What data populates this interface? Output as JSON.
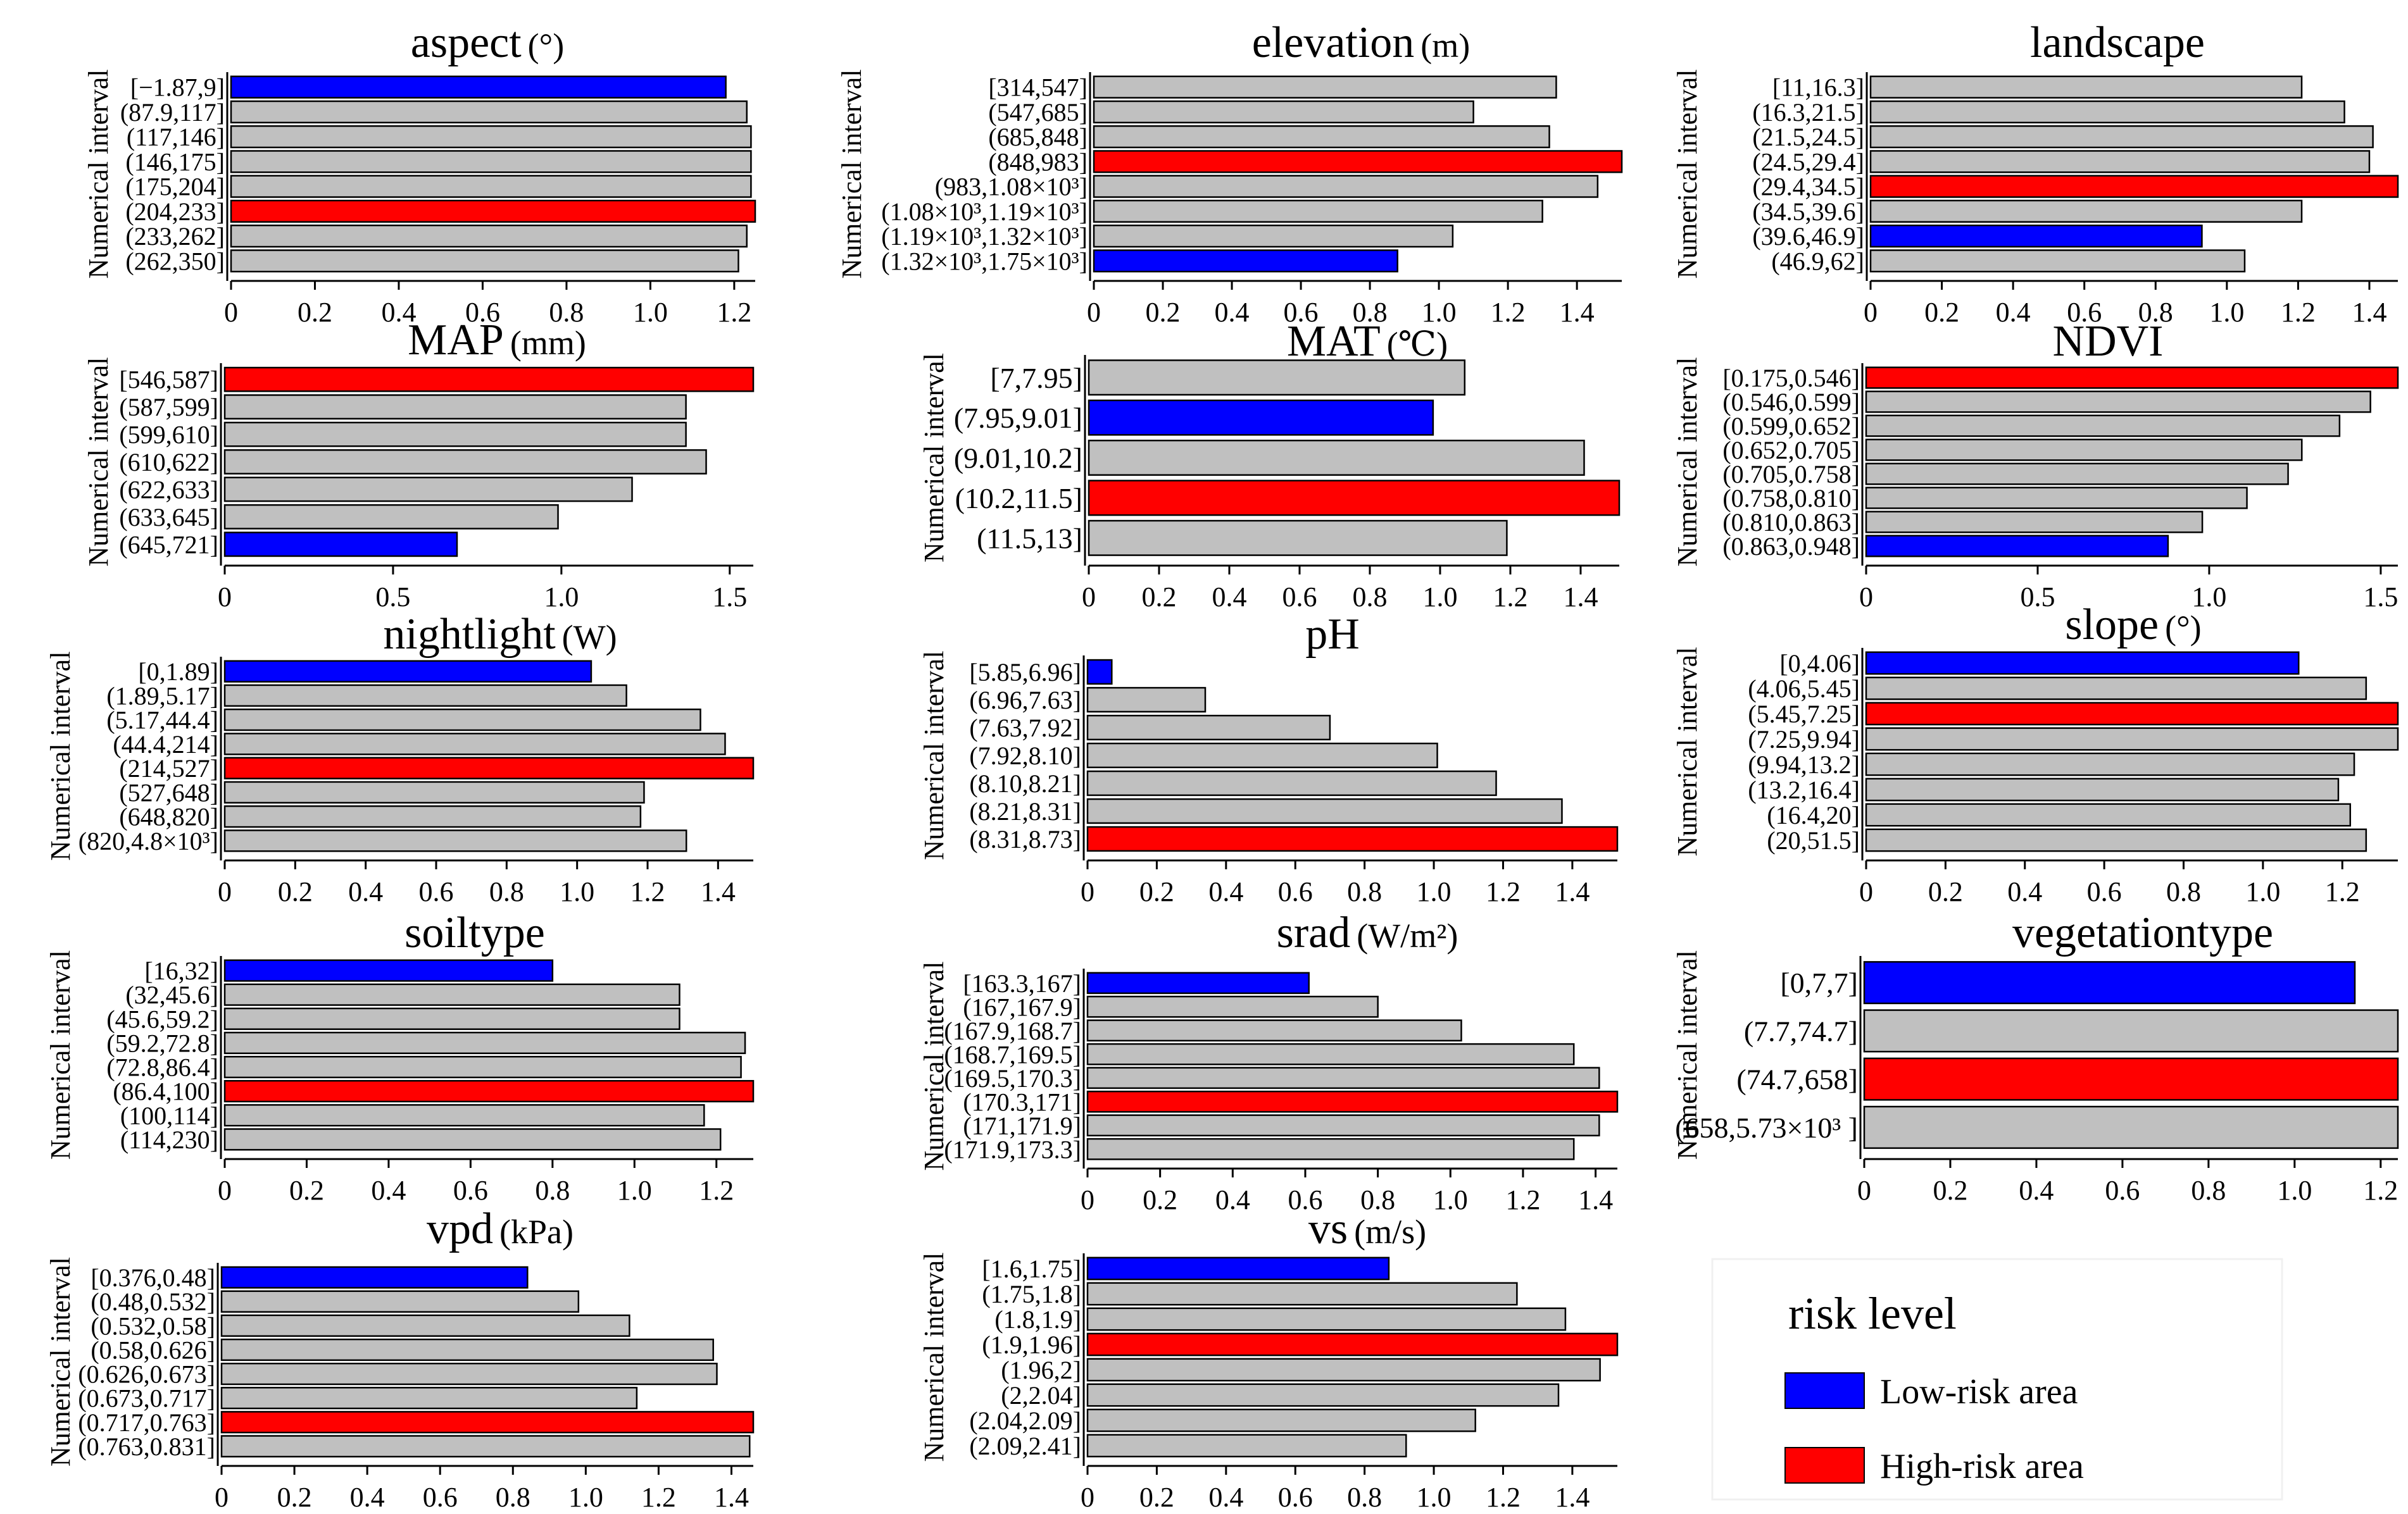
{
  "figure": {
    "title": ""
  },
  "legend": {
    "title": "risk level",
    "items": [
      {
        "label": "Low-risk area",
        "color": "#0000ff"
      },
      {
        "label": "High-risk area",
        "color": "#ff0000"
      }
    ]
  },
  "colors": {
    "low": "#0000ff",
    "high": "#ff0000",
    "normal": "#c0c0c0",
    "stroke": "#000000"
  },
  "chart_data": [
    {
      "type": "bar",
      "id": "aspect",
      "title": "aspect",
      "unit": "(°)",
      "ylabel": "Numerical interval",
      "xlabel": "",
      "categories": [
        "[−1.87,9]",
        "(87.9,117]",
        "(117,146]",
        "(146,175]",
        "(175,204]",
        "(204,233]",
        "(233,262]",
        "(262,350]"
      ],
      "values": [
        1.18,
        1.23,
        1.24,
        1.24,
        1.24,
        1.25,
        1.23,
        1.21
      ],
      "risk": [
        "low",
        "normal",
        "normal",
        "normal",
        "normal",
        "high",
        "normal",
        "normal"
      ],
      "xlim": [
        0,
        1.25
      ],
      "ticks": [
        "0",
        "0.2",
        "0.4",
        "0.6",
        "0.8",
        "1.0",
        "1.2"
      ]
    },
    {
      "type": "bar",
      "id": "elevation",
      "title": "elevation",
      "unit": "(m)",
      "ylabel": "Numerical interval",
      "xlabel": "",
      "categories": [
        "[314,547]",
        "(547,685]",
        "(685,848]",
        "(848,983]",
        "(983,1.08×10³]",
        "(1.08×10³,1.19×10³]",
        "(1.19×10³,1.32×10³]",
        "(1.32×10³,1.75×10³]"
      ],
      "values": [
        1.34,
        1.1,
        1.32,
        1.53,
        1.46,
        1.3,
        1.04,
        0.88
      ],
      "risk": [
        "normal",
        "normal",
        "normal",
        "high",
        "normal",
        "normal",
        "normal",
        "low"
      ],
      "xlim": [
        0,
        1.53
      ],
      "ticks": [
        "0",
        "0.2",
        "0.4",
        "0.6",
        "0.8",
        "1.0",
        "1.2",
        "1.4"
      ]
    },
    {
      "type": "bar",
      "id": "landscape",
      "title": "landscape",
      "unit": "",
      "ylabel": "Numerical interval",
      "xlabel": "",
      "categories": [
        "[11,16.3]",
        "(16.3,21.5]",
        "(21.5,24.5]",
        "(24.5,29.4]",
        "(29.4,34.5]",
        "(34.5,39.6]",
        "(39.6,46.9]",
        "(46.9,62]"
      ],
      "values": [
        1.21,
        1.33,
        1.41,
        1.4,
        1.48,
        1.21,
        0.93,
        1.05
      ],
      "risk": [
        "normal",
        "normal",
        "normal",
        "normal",
        "high",
        "normal",
        "low",
        "normal"
      ],
      "xlim": [
        0,
        1.48
      ],
      "ticks": [
        "0",
        "0.2",
        "0.4",
        "0.6",
        "0.8",
        "1.0",
        "1.2",
        "1.4"
      ]
    },
    {
      "type": "bar",
      "id": "MAP",
      "title": "MAP",
      "unit": "(mm)",
      "ylabel": "Numerical interval",
      "xlabel": "",
      "categories": [
        "[546,587]",
        "(587,599]",
        "(599,610]",
        "(610,622]",
        "(622,633]",
        "(633,645]",
        "(645,721]"
      ],
      "values": [
        1.57,
        1.37,
        1.37,
        1.43,
        1.21,
        0.99,
        0.69
      ],
      "risk": [
        "high",
        "normal",
        "normal",
        "normal",
        "normal",
        "normal",
        "low"
      ],
      "xlim": [
        0,
        1.57
      ],
      "ticks": [
        "0",
        "0.5",
        "1.0",
        "1.5"
      ]
    },
    {
      "type": "bar",
      "id": "MAT",
      "title": "MAT",
      "unit": "(℃)",
      "ylabel": "Numerical interval",
      "xlabel": "",
      "categories": [
        "[7,7.95]",
        "(7.95,9.01]",
        "(9.01,10.2]",
        "(10.2,11.5]",
        "(11.5,13]"
      ],
      "values": [
        1.07,
        0.98,
        1.41,
        1.51,
        1.19
      ],
      "risk": [
        "normal",
        "low",
        "normal",
        "high",
        "normal"
      ],
      "xlim": [
        0,
        1.51
      ],
      "ticks": [
        "0",
        "0.2",
        "0.4",
        "0.6",
        "0.8",
        "1.0",
        "1.2",
        "1.4"
      ]
    },
    {
      "type": "bar",
      "id": "NDVI",
      "title": "NDVI",
      "unit": "",
      "ylabel": "Numerical interval",
      "xlabel": "",
      "categories": [
        "[0.175,0.546]",
        "(0.546,0.599]",
        "(0.599,0.652]",
        "(0.652,0.705]",
        "(0.705,0.758]",
        "(0.758,0.810]",
        "(0.810,0.863]",
        "(0.863,0.948]"
      ],
      "values": [
        1.55,
        1.47,
        1.38,
        1.27,
        1.23,
        1.11,
        0.98,
        0.88
      ],
      "risk": [
        "high",
        "normal",
        "normal",
        "normal",
        "normal",
        "normal",
        "normal",
        "low"
      ],
      "xlim": [
        0,
        1.55
      ],
      "ticks": [
        "0",
        "0.5",
        "1.0",
        "1.5"
      ]
    },
    {
      "type": "bar",
      "id": "nightlight",
      "title": "nightlight",
      "unit": "(W)",
      "ylabel": "Numerical interval",
      "xlabel": "",
      "categories": [
        "[0,1.89]",
        "(1.89,5.17]",
        "(5.17,44.4]",
        "(44.4,214]",
        "(214,527]",
        "(527,648]",
        "(648,820]",
        "(820,4.8×10³]"
      ],
      "values": [
        1.04,
        1.14,
        1.35,
        1.42,
        1.5,
        1.19,
        1.18,
        1.31
      ],
      "risk": [
        "low",
        "normal",
        "normal",
        "normal",
        "high",
        "normal",
        "normal",
        "normal"
      ],
      "xlim": [
        0,
        1.5
      ],
      "ticks": [
        "0",
        "0.2",
        "0.4",
        "0.6",
        "0.8",
        "1.0",
        "1.2",
        "1.4"
      ]
    },
    {
      "type": "bar",
      "id": "pH",
      "title": "pH",
      "unit": "",
      "ylabel": "Numerical interval",
      "xlabel": "",
      "categories": [
        "[5.85,6.96]",
        "(6.96,7.63]",
        "(7.63,7.92]",
        "(7.92,8.10]",
        "(8.10,8.21]",
        "(8.21,8.31]",
        "(8.31,8.73]"
      ],
      "values": [
        0.07,
        0.34,
        0.7,
        1.01,
        1.18,
        1.37,
        1.53
      ],
      "risk": [
        "low",
        "normal",
        "normal",
        "normal",
        "normal",
        "normal",
        "high"
      ],
      "xlim": [
        0,
        1.53
      ],
      "ticks": [
        "0",
        "0.2",
        "0.4",
        "0.6",
        "0.8",
        "1.0",
        "1.2",
        "1.4"
      ]
    },
    {
      "type": "bar",
      "id": "slope",
      "title": "slope",
      "unit": "(°)",
      "ylabel": "Numerical interval",
      "xlabel": "",
      "categories": [
        "[0,4.06]",
        "(4.06,5.45]",
        "(5.45,7.25]",
        "(7.25,9.94]",
        "(9.94,13.2]",
        "(13.2,16.4]",
        "(16.4,20]",
        "(20,51.5]"
      ],
      "values": [
        1.09,
        1.26,
        1.34,
        1.34,
        1.23,
        1.19,
        1.22,
        1.26
      ],
      "risk": [
        "low",
        "normal",
        "high",
        "normal",
        "normal",
        "normal",
        "normal",
        "normal"
      ],
      "xlim": [
        0,
        1.34
      ],
      "ticks": [
        "0",
        "0.2",
        "0.4",
        "0.6",
        "0.8",
        "1.0",
        "1.2"
      ]
    },
    {
      "type": "bar",
      "id": "soiltype",
      "title": "soiltype",
      "unit": "",
      "ylabel": "Numerical interval",
      "xlabel": "",
      "categories": [
        "[16,32]",
        "(32,45.6]",
        "(45.6,59.2]",
        "(59.2,72.8]",
        "(72.8,86.4]",
        "(86.4,100]",
        "(100,114]",
        "(114,230]"
      ],
      "values": [
        0.8,
        1.11,
        1.11,
        1.27,
        1.26,
        1.29,
        1.17,
        1.21
      ],
      "risk": [
        "low",
        "normal",
        "normal",
        "normal",
        "normal",
        "high",
        "normal",
        "normal"
      ],
      "xlim": [
        0,
        1.29
      ],
      "ticks": [
        "0",
        "0.2",
        "0.4",
        "0.6",
        "0.8",
        "1.0",
        "1.2"
      ]
    },
    {
      "type": "bar",
      "id": "srad",
      "title": "srad",
      "unit": "(W/m²)",
      "ylabel": "Numerical interval",
      "xlabel": "",
      "categories": [
        "[163.3,167]",
        "(167,167.9]",
        "(167.9,168.7]",
        "(168.7,169.5]",
        "(169.5,170.3]",
        "(170.3,171]",
        "(171,171.9]",
        "(171.9,173.3]"
      ],
      "values": [
        0.61,
        0.8,
        1.03,
        1.34,
        1.41,
        1.46,
        1.41,
        1.34
      ],
      "risk": [
        "low",
        "normal",
        "normal",
        "normal",
        "normal",
        "high",
        "normal",
        "normal"
      ],
      "xlim": [
        0,
        1.46
      ],
      "ticks": [
        "0",
        "0.2",
        "0.4",
        "0.6",
        "0.8",
        "1.0",
        "1.2",
        "1.4"
      ]
    },
    {
      "type": "bar",
      "id": "vegetationtype",
      "title": "vegetationtype",
      "unit": "",
      "ylabel": "Numerical interval",
      "xlabel": "",
      "categories": [
        "[0,7,7]",
        "(7.7,74.7]",
        "(74.7,658]",
        "(658,5.73×10³ ]"
      ],
      "values": [
        1.14,
        1.24,
        1.24,
        1.24
      ],
      "risk": [
        "low",
        "normal",
        "high",
        "normal"
      ],
      "xlim": [
        0,
        1.24
      ],
      "ticks": [
        "0",
        "0.2",
        "0.4",
        "0.6",
        "0.8",
        "1.0",
        "1.2"
      ]
    },
    {
      "type": "bar",
      "id": "vpd",
      "title": "vpd",
      "unit": "(kPa)",
      "ylabel": "Numerical interval",
      "xlabel": "",
      "categories": [
        "[0.376,0.48]",
        "(0.48,0.532]",
        "(0.532,0.58]",
        "(0.58,0.626]",
        "(0.626,0.673]",
        "(0.673,0.717]",
        "(0.717,0.763]",
        "(0.763,0.831]"
      ],
      "values": [
        0.84,
        0.98,
        1.12,
        1.35,
        1.36,
        1.14,
        1.46,
        1.45
      ],
      "risk": [
        "low",
        "normal",
        "normal",
        "normal",
        "normal",
        "normal",
        "high",
        "normal"
      ],
      "xlim": [
        0,
        1.46
      ],
      "ticks": [
        "0",
        "0.2",
        "0.4",
        "0.6",
        "0.8",
        "1.0",
        "1.2",
        "1.4"
      ]
    },
    {
      "type": "bar",
      "id": "vs",
      "title": "vs",
      "unit": "(m/s)",
      "ylabel": "Numerical interval",
      "xlabel": "",
      "categories": [
        "[1.6,1.75]",
        "(1.75,1.8]",
        "(1.8,1.9]",
        "(1.9,1.96]",
        "(1.96,2]",
        "(2,2.04]",
        "(2.04,2.09]",
        "(2.09,2.41]"
      ],
      "values": [
        0.87,
        1.24,
        1.38,
        1.53,
        1.48,
        1.36,
        1.12,
        0.92
      ],
      "risk": [
        "low",
        "normal",
        "normal",
        "high",
        "normal",
        "normal",
        "normal",
        "normal"
      ],
      "xlim": [
        0,
        1.53
      ],
      "ticks": [
        "0",
        "0.2",
        "0.4",
        "0.6",
        "0.8",
        "1.0",
        "1.2",
        "1.4"
      ]
    }
  ]
}
